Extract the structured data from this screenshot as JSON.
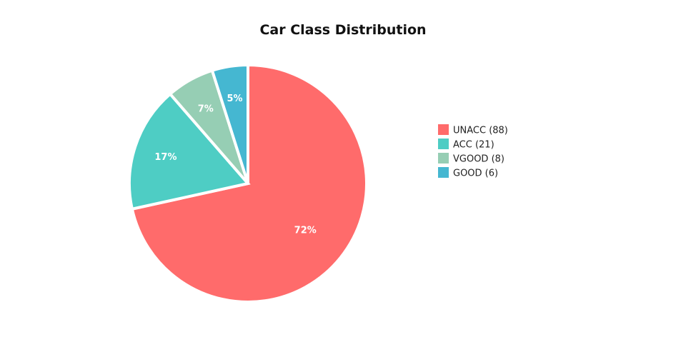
{
  "chart_data": {
    "type": "pie",
    "title": "Car Class Distribution",
    "slices": [
      {
        "label": "UNACC",
        "value": 88,
        "percent_label": "72%",
        "color": "#FF6B6B",
        "legend": "UNACC (88)"
      },
      {
        "label": "ACC",
        "value": 21,
        "percent_label": "17%",
        "color": "#4ECDC4",
        "legend": "ACC (21)"
      },
      {
        "label": "VGOOD",
        "value": 8,
        "percent_label": "7%",
        "color": "#96CEB4",
        "legend": "VGOOD (8)"
      },
      {
        "label": "GOOD",
        "value": 6,
        "percent_label": "5%",
        "color": "#45B7D1",
        "legend": "GOOD (6)"
      }
    ],
    "direction": "clockwise",
    "legend_position": "right"
  }
}
